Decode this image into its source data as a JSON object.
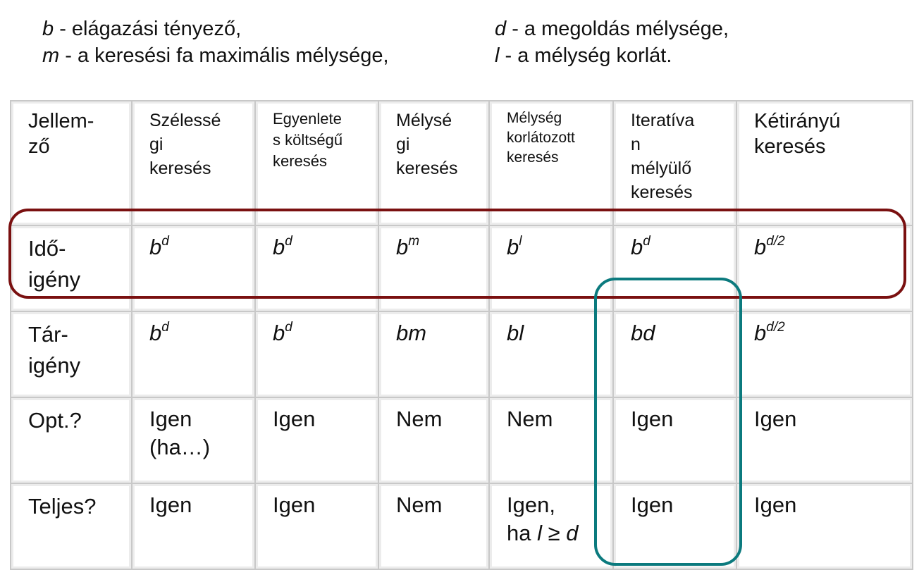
{
  "legend": {
    "b_sym": "b",
    "b_text": " - elágazási tényező,",
    "m_sym": "m",
    "m_text": " - a keresési fa maximális mélysége,",
    "d_sym": "d",
    "d_text": " - a megoldás mélysége,",
    "l_sym": "l",
    "l_text": " - a mélység korlát."
  },
  "table": {
    "header": [
      "Jellem-\nző",
      "Szélessé\ngi\nkeresés",
      "Egyenlete\ns költségű\nkeresés",
      "Mélysé\ngi\nkeresés",
      "Mélység\nkorlátozott\nkeresés",
      "Iteratíva\nn\nmélyülő\nkeresés",
      "Kétirányú\nkeresés"
    ],
    "rows": {
      "time": {
        "label": "Idő-\nigény",
        "cells": [
          {
            "base": "b",
            "exp": "d"
          },
          {
            "base": "b",
            "exp": "d"
          },
          {
            "base": "b",
            "exp": "m"
          },
          {
            "base": "b",
            "exp": "l"
          },
          {
            "base": "b",
            "exp": "d"
          },
          {
            "base": "b",
            "exp": "d/2"
          }
        ]
      },
      "space": {
        "label": "Tár-\nigény",
        "cells": [
          {
            "base": "b",
            "exp": "d"
          },
          {
            "base": "b",
            "exp": "d"
          },
          {
            "base": "bm",
            "exp": ""
          },
          {
            "base": "bl",
            "exp": ""
          },
          {
            "base": "bd",
            "exp": ""
          },
          {
            "base": "b",
            "exp": "d/2"
          }
        ]
      },
      "opt": {
        "label": "Opt.?",
        "cells": [
          "Igen\n(ha…)",
          "Igen",
          "Nem",
          "Nem",
          "Igen",
          "Igen"
        ]
      },
      "complete": {
        "label": "Teljes?",
        "cells": [
          "Igen",
          "Igen",
          "Nem"
        ],
        "dls_line1": "Igen,",
        "dls_line2_pre": "ha ",
        "dls_line2_l": "l",
        "dls_line2_op": " ≥ ",
        "dls_line2_d": "d",
        "rest": [
          "Igen",
          "Igen"
        ]
      }
    }
  },
  "highlights": {
    "time_row_color": "#7a1010",
    "ids_column_color": "#0b7a7e"
  }
}
